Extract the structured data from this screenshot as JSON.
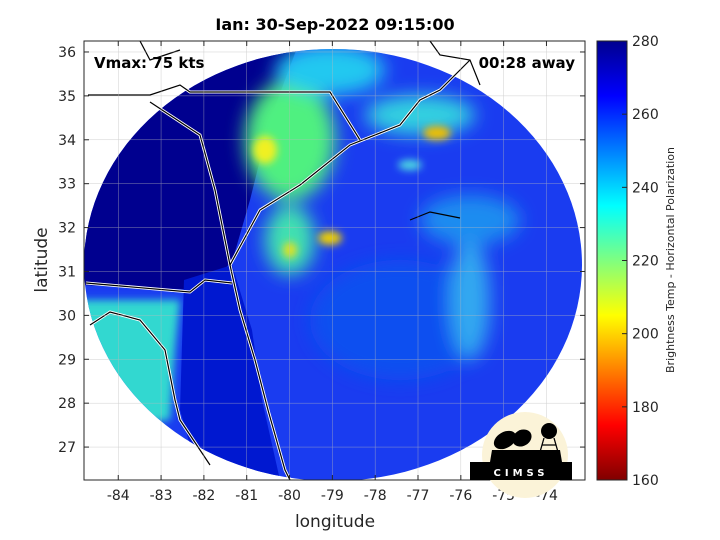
{
  "chart_data": {
    "type": "heatmap",
    "title": "Ian: 30-Sep-2022 09:15:00",
    "xlabel": "longitude",
    "ylabel": "latitude",
    "xlim": [
      -84.8,
      -73.1
    ],
    "ylim": [
      26.25,
      36.25
    ],
    "xticks": [
      -84,
      -83,
      -82,
      -81,
      -80,
      -79,
      -78,
      -77,
      -76,
      -75,
      -74
    ],
    "yticks": [
      27,
      28,
      29,
      30,
      31,
      32,
      33,
      34,
      35,
      36
    ],
    "grid": true,
    "annotations": {
      "left": "Vmax: 75 kts",
      "right": "00:28 away"
    },
    "colorbar": {
      "label": "Brightness Temp - Horizontal Polarization",
      "range": [
        160,
        280
      ],
      "ticks": [
        160,
        180,
        200,
        220,
        240,
        260,
        280
      ],
      "colormap": "jet",
      "location": "right"
    },
    "features": [
      {
        "lon": -79.2,
        "lat": 31.2
      },
      {
        "lon": -80.5,
        "lat": 33.5,
        "value": 215
      },
      {
        "lon": -79.0,
        "lat": 31.8,
        "value": 205
      },
      {
        "lon": -76.9,
        "lat": 34.1,
        "value": 200
      }
    ]
  },
  "logo": "CIMSS",
  "colors": {
    "land_cold": "#00008f",
    "sea": "#1437f0",
    "warm": "#f0e000"
  }
}
